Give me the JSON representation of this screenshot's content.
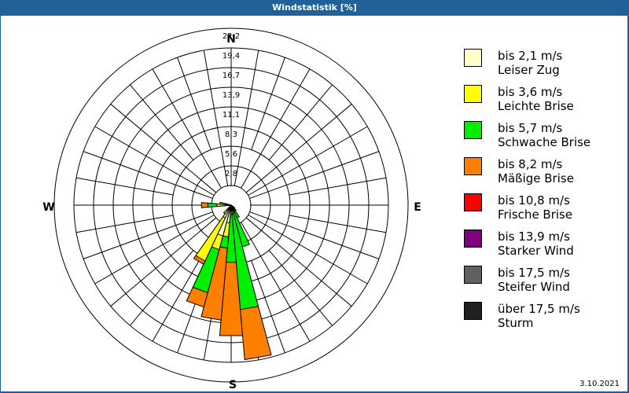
{
  "window": {
    "title": "Windstatistik [%]"
  },
  "footer": {
    "date": "3.10.2021"
  },
  "compass": {
    "n": "N",
    "e": "E",
    "s": "S",
    "w": "W"
  },
  "legend": [
    {
      "speed": "bis 2,1 m/s",
      "name": "Leiser Zug",
      "color": "#ffffcc"
    },
    {
      "speed": "bis 3,6 m/s",
      "name": "Leichte Brise",
      "color": "#ffff00"
    },
    {
      "speed": "bis 5,7 m/s",
      "name": "Schwache Brise",
      "color": "#00ee00"
    },
    {
      "speed": "bis 8,2 m/s",
      "name": "Mäßige Brise",
      "color": "#ff8000"
    },
    {
      "speed": "bis 10,8 m/s",
      "name": "Frische Brise",
      "color": "#ff0000"
    },
    {
      "speed": "bis 13,9 m/s",
      "name": "Starker Wind",
      "color": "#800080"
    },
    {
      "speed": "bis 17,5 m/s",
      "name": "Steifer Wind",
      "color": "#606060"
    },
    {
      "speed": "über 17,5 m/s",
      "name": "Sturm",
      "color": "#202020"
    }
  ],
  "chart_data": {
    "type": "windrose",
    "title": "Windstatistik [%]",
    "unit": "%",
    "ring_labels": [
      "2,8",
      "5,6",
      "8,3",
      "11,1",
      "13,9",
      "16,7",
      "19,4",
      "22,2"
    ],
    "rmax": 22.2,
    "sector_width_deg": 10,
    "classes": [
      "bis 2,1 m/s",
      "bis 3,6 m/s",
      "bis 5,7 m/s",
      "bis 8,2 m/s",
      "bis 10,8 m/s",
      "bis 13,9 m/s",
      "bis 17,5 m/s",
      "über 17,5 m/s"
    ],
    "sectors": [
      {
        "dir": 150,
        "cumulative": [
          0.5,
          0.9,
          2.0,
          2.0
        ]
      },
      {
        "dir": 160,
        "cumulative": [
          0.6,
          1.0,
          6.1,
          6.1
        ]
      },
      {
        "dir": 170,
        "cumulative": [
          0.8,
          1.2,
          14.8,
          21.9
        ]
      },
      {
        "dir": 180,
        "cumulative": [
          0.8,
          1.3,
          8.1,
          18.5
        ]
      },
      {
        "dir": 190,
        "cumulative": [
          2.5,
          4.5,
          6.1,
          16.3
        ]
      },
      {
        "dir": 200,
        "cumulative": [
          4.5,
          6.5,
          12.8,
          14.9
        ]
      },
      {
        "dir": 210,
        "cumulative": [
          2.0,
          8.7,
          8.7,
          9.2
        ]
      },
      {
        "dir": 220,
        "cumulative": [
          0.5,
          1.5,
          1.5,
          1.5
        ]
      },
      {
        "dir": 270,
        "cumulative": [
          0.6,
          2.0,
          3.3,
          4.2
        ]
      },
      {
        "dir": 280,
        "cumulative": [
          0.3,
          0.8,
          1.6,
          1.6
        ]
      },
      {
        "dir": 140,
        "cumulative": [
          0.3,
          0.6,
          1.0,
          1.0
        ]
      },
      {
        "dir": 130,
        "cumulative": [
          0.2,
          0.4,
          0.6,
          0.6
        ]
      }
    ]
  }
}
